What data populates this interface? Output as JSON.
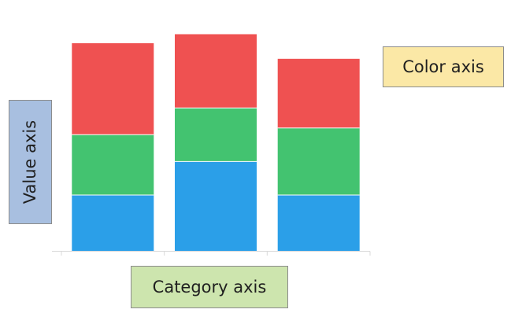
{
  "chart_data": {
    "type": "bar",
    "stacked": true,
    "categories": [
      "",
      "",
      ""
    ],
    "series": [
      {
        "values": [
          25,
          40,
          25
        ]
      },
      {
        "values": [
          27,
          24,
          30
        ]
      },
      {
        "values": [
          41,
          33,
          31
        ]
      }
    ],
    "colors": [
      "#2b9fe8",
      "#43c370",
      "#ef5151"
    ],
    "ylim": [
      0,
      100
    ],
    "grid": false,
    "xlabel": "Category axis",
    "ylabel": "Value axis",
    "color_axis_label": "Color axis"
  }
}
